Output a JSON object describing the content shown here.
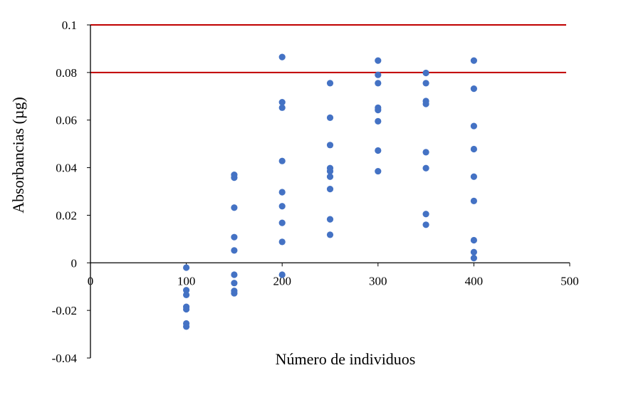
{
  "chart_data": {
    "type": "scatter",
    "title": "",
    "xlabel": "Número de individuos",
    "ylabel": "Absorbancias (µg)",
    "xlim": [
      0,
      500
    ],
    "ylim": [
      -0.04,
      0.1
    ],
    "x_ticks": [
      0,
      100,
      200,
      300,
      400,
      500
    ],
    "x_tick_labels": [
      "0",
      "100",
      "200",
      "300",
      "400",
      "500"
    ],
    "y_ticks": [
      -0.04,
      -0.02,
      0,
      0.02,
      0.04,
      0.06,
      0.08,
      0.1
    ],
    "y_tick_labels": [
      "-0.04",
      "-0.02",
      "0",
      "0.02",
      "0.04",
      "0.06",
      "0.08",
      "0.1"
    ],
    "grid": false,
    "legend": "none",
    "reference_lines": [
      {
        "y": 0.1,
        "color": "#c00000"
      },
      {
        "y": 0.08,
        "color": "#c00000"
      }
    ],
    "series": [
      {
        "color": "#4472c4",
        "points": [
          {
            "x": 100,
            "y": -0.002
          },
          {
            "x": 100,
            "y": -0.0115
          },
          {
            "x": 100,
            "y": -0.0135
          },
          {
            "x": 100,
            "y": -0.0185
          },
          {
            "x": 100,
            "y": -0.0195
          },
          {
            "x": 100,
            "y": -0.0255
          },
          {
            "x": 100,
            "y": -0.0268
          },
          {
            "x": 150,
            "y": 0.037
          },
          {
            "x": 150,
            "y": 0.0358
          },
          {
            "x": 150,
            "y": 0.0232
          },
          {
            "x": 150,
            "y": 0.0108
          },
          {
            "x": 150,
            "y": 0.0052
          },
          {
            "x": 150,
            "y": -0.005
          },
          {
            "x": 150,
            "y": -0.0085
          },
          {
            "x": 150,
            "y": -0.0118
          },
          {
            "x": 150,
            "y": -0.0128
          },
          {
            "x": 200,
            "y": 0.0865
          },
          {
            "x": 200,
            "y": 0.0675
          },
          {
            "x": 200,
            "y": 0.0652
          },
          {
            "x": 200,
            "y": 0.0428
          },
          {
            "x": 200,
            "y": 0.0297
          },
          {
            "x": 200,
            "y": 0.0238
          },
          {
            "x": 200,
            "y": 0.0168
          },
          {
            "x": 200,
            "y": 0.0088
          },
          {
            "x": 200,
            "y": -0.005
          },
          {
            "x": 250,
            "y": 0.0755
          },
          {
            "x": 250,
            "y": 0.061
          },
          {
            "x": 250,
            "y": 0.0495
          },
          {
            "x": 250,
            "y": 0.0398
          },
          {
            "x": 250,
            "y": 0.0385
          },
          {
            "x": 250,
            "y": 0.0362
          },
          {
            "x": 250,
            "y": 0.031
          },
          {
            "x": 250,
            "y": 0.0183
          },
          {
            "x": 250,
            "y": 0.0118
          },
          {
            "x": 300,
            "y": 0.085
          },
          {
            "x": 300,
            "y": 0.079
          },
          {
            "x": 300,
            "y": 0.0755
          },
          {
            "x": 300,
            "y": 0.0652
          },
          {
            "x": 300,
            "y": 0.0642
          },
          {
            "x": 300,
            "y": 0.0595
          },
          {
            "x": 300,
            "y": 0.0472
          },
          {
            "x": 300,
            "y": 0.0385
          },
          {
            "x": 350,
            "y": 0.0798
          },
          {
            "x": 350,
            "y": 0.0755
          },
          {
            "x": 350,
            "y": 0.068
          },
          {
            "x": 350,
            "y": 0.0668
          },
          {
            "x": 350,
            "y": 0.0465
          },
          {
            "x": 350,
            "y": 0.0398
          },
          {
            "x": 350,
            "y": 0.0205
          },
          {
            "x": 350,
            "y": 0.016
          },
          {
            "x": 400,
            "y": 0.085
          },
          {
            "x": 400,
            "y": 0.0732
          },
          {
            "x": 400,
            "y": 0.0575
          },
          {
            "x": 400,
            "y": 0.0478
          },
          {
            "x": 400,
            "y": 0.0362
          },
          {
            "x": 400,
            "y": 0.026
          },
          {
            "x": 400,
            "y": 0.0095
          },
          {
            "x": 400,
            "y": 0.0045
          },
          {
            "x": 400,
            "y": 0.002
          }
        ]
      }
    ]
  }
}
